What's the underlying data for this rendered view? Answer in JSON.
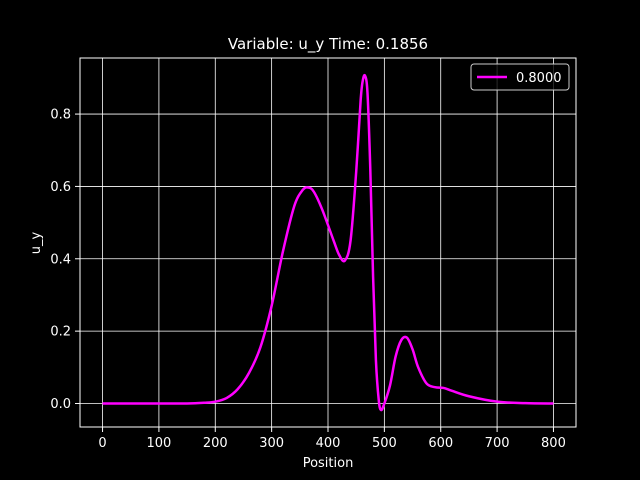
{
  "chart_data": {
    "type": "line",
    "title": "Variable: u_y Time: 0.1856",
    "xlabel": "Position",
    "ylabel": "u_y",
    "xlim": [
      -40,
      840
    ],
    "ylim": [
      -0.065,
      0.955
    ],
    "xticks": [
      0,
      100,
      200,
      300,
      400,
      500,
      600,
      700,
      800
    ],
    "yticks": [
      0.0,
      0.2,
      0.4,
      0.6,
      0.8
    ],
    "xtick_labels": [
      "0",
      "100",
      "200",
      "300",
      "400",
      "500",
      "600",
      "700",
      "800"
    ],
    "ytick_labels": [
      "0.0",
      "0.2",
      "0.4",
      "0.6",
      "0.8"
    ],
    "grid": true,
    "legend_position": "top-right",
    "background": "#000000",
    "foreground": "#ffffff",
    "series": [
      {
        "name": "0.8000",
        "color": "#ff00ff",
        "x": [
          0,
          50,
          100,
          150,
          180,
          200,
          220,
          240,
          260,
          280,
          300,
          320,
          340,
          355,
          365,
          375,
          390,
          410,
          420,
          430,
          440,
          450,
          458,
          462,
          466,
          470,
          475,
          480,
          485,
          490,
          494,
          500,
          510,
          520,
          530,
          540,
          550,
          560,
          575,
          590,
          605,
          620,
          650,
          700,
          750,
          800
        ],
        "y": [
          0,
          0,
          0,
          0,
          0.002,
          0.005,
          0.015,
          0.04,
          0.085,
          0.155,
          0.27,
          0.42,
          0.545,
          0.59,
          0.597,
          0.585,
          0.535,
          0.45,
          0.41,
          0.395,
          0.45,
          0.64,
          0.84,
          0.895,
          0.905,
          0.86,
          0.65,
          0.35,
          0.12,
          0.01,
          -0.018,
          0.0,
          0.05,
          0.13,
          0.175,
          0.182,
          0.15,
          0.1,
          0.055,
          0.045,
          0.043,
          0.035,
          0.02,
          0.005,
          0.001,
          0
        ]
      }
    ]
  }
}
